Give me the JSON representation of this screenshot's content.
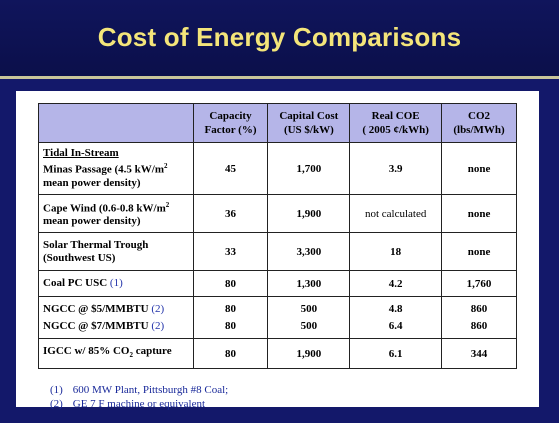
{
  "title": "Cost of Energy  Comparisons",
  "table": {
    "headers": [
      {
        "line1": "",
        "line2": ""
      },
      {
        "line1": "Capacity",
        "line2": "Factor (%)"
      },
      {
        "line1": "Capital Cost",
        "line2": "(US $/kW)"
      },
      {
        "line1": "Real COE",
        "line2": "( 2005 ¢/kWh)"
      },
      {
        "line1": "CO2",
        "line2": "(lbs/MWh)"
      }
    ],
    "rows": [
      {
        "label_title": "Tidal In-Stream",
        "label_l1": "Minas Passage (4.5 kW/m",
        "label_sup": "2",
        "label_l2": "mean power density)",
        "capacity": "45",
        "capital": "1,700",
        "coe": "3.9",
        "co2": "none"
      },
      {
        "label_l1": "Cape Wind (0.6-0.8 kW/m",
        "label_sup": "2",
        "label_l2": "mean power density)",
        "capacity": "36",
        "capital": "1,900",
        "coe": "not calculated",
        "co2": "none"
      },
      {
        "label_l1": "Solar Thermal Trough",
        "label_l2": "(Southwest US)",
        "capacity": "33",
        "capital": "3,300",
        "coe": "18",
        "co2": "none"
      },
      {
        "label_l1": "Coal PC USC",
        "ref": "(1)",
        "capacity": "80",
        "capital": "1,300",
        "coe": "4.2",
        "co2": "1,760"
      },
      {
        "label_l1": "NGCC @ $5/MMBTU",
        "ref1": "(2)",
        "label_l2": "NGCC @ $7/MMBTU",
        "ref2": "(2)",
        "capacity": "80",
        "capacity2": "80",
        "capital": "500",
        "capital2": "500",
        "coe": "4.8",
        "coe2": "6.4",
        "co2": "860",
        "co2b": "860"
      },
      {
        "label_l1": "IGCC w/ 85% CO",
        "label_sub": "2",
        "label_l1b": " capture",
        "capacity": "80",
        "capital": "1,900",
        "coe": "6.1",
        "co2": "344"
      }
    ]
  },
  "notes": [
    {
      "num": "(1)",
      "text": "600 MW Plant, Pittsburgh #8 Coal;"
    },
    {
      "num": "(2)",
      "text": "GE 7 F machine or equivalent"
    }
  ]
}
